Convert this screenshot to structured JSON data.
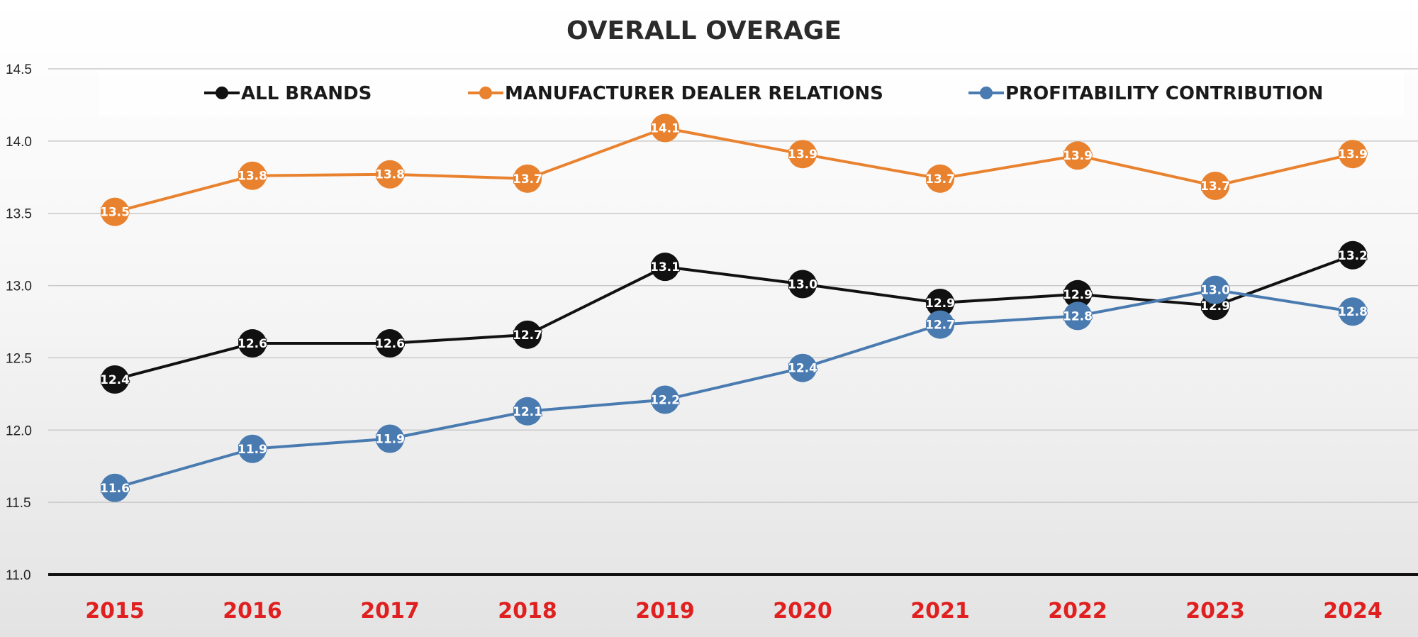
{
  "chart_data": {
    "type": "line",
    "title": "OVERALL OVERAGE",
    "xlabel": "",
    "ylabel": "",
    "categories": [
      "2015",
      "2016",
      "2017",
      "2018",
      "2019",
      "2020",
      "2021",
      "2022",
      "2023",
      "2024"
    ],
    "ylim": [
      11.0,
      14.5
    ],
    "yticks": [
      "11.0",
      "11.5",
      "12.0",
      "12.5",
      "13.0",
      "13.5",
      "14.0",
      "14.5"
    ],
    "grid": true,
    "legend_position": "top",
    "series": [
      {
        "name": "ALL BRANDS",
        "color": "#111111",
        "values": [
          12.35,
          12.6,
          12.6,
          12.66,
          13.13,
          13.01,
          12.88,
          12.94,
          12.86,
          13.21
        ],
        "labels": [
          "12.4",
          "12.6",
          "12.6",
          "12.7",
          "13.1",
          "13.0",
          "12.9",
          "12.9",
          "12.9",
          "13.2"
        ]
      },
      {
        "name": "MANUFACTURER DEALER RELATIONS",
        "color": "#e9822f",
        "values": [
          13.51,
          13.76,
          13.77,
          13.74,
          14.09,
          13.91,
          13.74,
          13.9,
          13.69,
          13.91
        ],
        "labels": [
          "13.5",
          "13.8",
          "13.8",
          "13.7",
          "14.1",
          "13.9",
          "13.7",
          "13.9",
          "13.7",
          "13.9"
        ]
      },
      {
        "name": "PROFITABILITY CONTRIBUTION",
        "color": "#4a7bb0",
        "values": [
          11.6,
          11.87,
          11.94,
          12.13,
          12.21,
          12.43,
          12.73,
          12.79,
          12.97,
          12.82
        ],
        "labels": [
          "11.6",
          "11.9",
          "11.9",
          "12.1",
          "12.2",
          "12.4",
          "12.7",
          "12.8",
          "13.0",
          "12.8"
        ]
      }
    ]
  }
}
